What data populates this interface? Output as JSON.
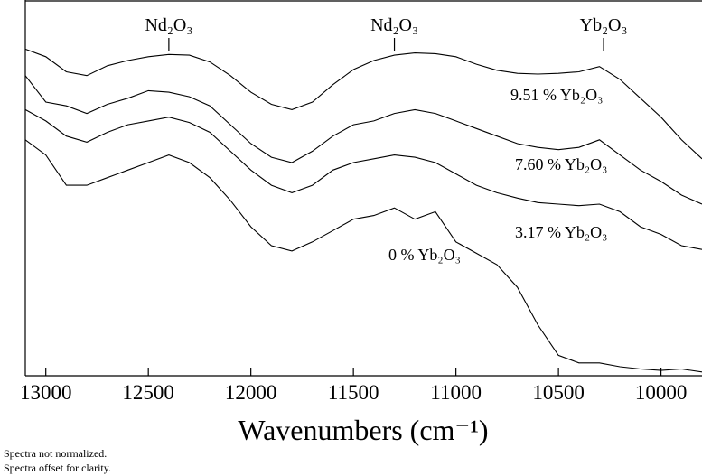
{
  "chart_data": {
    "type": "line",
    "x": [
      13100,
      13000,
      12900,
      12800,
      12700,
      12600,
      12500,
      12400,
      12300,
      12200,
      12100,
      12000,
      11900,
      11800,
      11700,
      11600,
      11500,
      11400,
      11300,
      11200,
      11100,
      11000,
      10900,
      10800,
      10700,
      10600,
      10500,
      10400,
      10300,
      10200,
      10100,
      10000,
      9900,
      9800
    ],
    "series": [
      {
        "name": "9.51 % Yb₂O₃",
        "color": "#000000",
        "values": [
          432,
          422,
          402,
          397,
          410,
          417,
          422,
          425,
          424,
          415,
          397,
          375,
          359,
          352,
          362,
          385,
          405,
          417,
          424,
          427,
          426,
          422,
          412,
          404,
          400,
          399,
          400,
          402,
          409,
          392,
          367,
          342,
          312,
          287
        ]
      },
      {
        "name": "7.60 % Yb₂O₃",
        "color": "#000000",
        "values": [
          397,
          362,
          357,
          347,
          359,
          367,
          377,
          375,
          369,
          357,
          332,
          307,
          289,
          282,
          297,
          317,
          332,
          337,
          347,
          352,
          347,
          337,
          327,
          317,
          307,
          302,
          299,
          302,
          312,
          292,
          272,
          257,
          239,
          227
        ]
      },
      {
        "name": "3.17 % Yb₂O₃",
        "color": "#000000",
        "values": [
          352,
          337,
          317,
          309,
          322,
          332,
          337,
          342,
          335,
          322,
          297,
          272,
          252,
          242,
          252,
          272,
          282,
          287,
          292,
          289,
          282,
          267,
          252,
          242,
          235,
          229,
          227,
          225,
          227,
          217,
          197,
          187,
          172,
          167
        ]
      },
      {
        "name": "0 % Yb₂O₃",
        "color": "#000000",
        "values": [
          312,
          292,
          252,
          252,
          262,
          272,
          282,
          292,
          282,
          262,
          232,
          197,
          172,
          165,
          177,
          192,
          207,
          212,
          222,
          207,
          217,
          177,
          162,
          147,
          117,
          67,
          27,
          17,
          17,
          12,
          9,
          7,
          9,
          5
        ]
      }
    ],
    "xlim": [
      13100,
      9800
    ],
    "xticks": [
      13000,
      12500,
      12000,
      11500,
      11000,
      10500,
      10000
    ],
    "ylim": [
      0,
      497
    ],
    "x_label": "Wavenumbers (cm⁻¹)",
    "annotations": [
      {
        "text": "Nd₂O₃",
        "x": 12400
      },
      {
        "text": "Nd₂O₃",
        "x": 11300
      },
      {
        "text": "Yb₂O₃",
        "x": 10280
      }
    ],
    "notes": [
      "Spectra not normalized.",
      "Spectra offset for clarity."
    ]
  }
}
